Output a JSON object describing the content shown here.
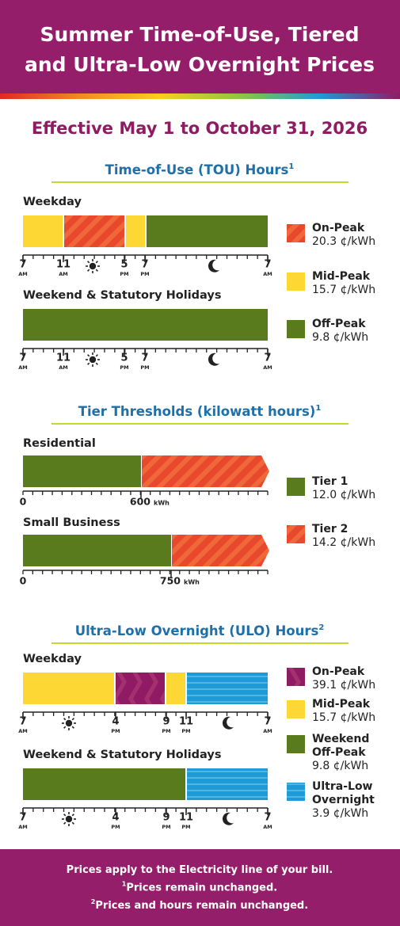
{
  "header": {
    "title_lines": [
      "Summer Time-of-Use, Tiered",
      "and Ultra-Low Overnight Prices"
    ]
  },
  "effective": "Effective May 1 to October 31, 2026",
  "tou": {
    "heading": "Time-of-Use (TOU) Hours",
    "heading_note": "1",
    "weekday": {
      "label": "Weekday",
      "ticks": [
        {
          "number": "7",
          "suffix": "AM"
        },
        {
          "number": "11",
          "suffix": "AM"
        },
        {
          "number": "5",
          "suffix": "PM"
        },
        {
          "number": "7",
          "suffix": "PM"
        },
        {
          "number": "7",
          "suffix": "AM"
        }
      ]
    },
    "weekend": {
      "label": "Weekend & Statutory Holidays",
      "ticks": [
        {
          "number": "7",
          "suffix": "AM"
        },
        {
          "number": "11",
          "suffix": "AM"
        },
        {
          "number": "5",
          "suffix": "PM"
        },
        {
          "number": "7",
          "suffix": "PM"
        },
        {
          "number": "7",
          "suffix": "AM"
        }
      ]
    },
    "legend": [
      {
        "name_lines": [
          "On-Peak"
        ],
        "price": "20.3 ¢/kWh"
      },
      {
        "name_lines": [
          "Mid-Peak"
        ],
        "price": "15.7 ¢/kWh"
      },
      {
        "name_lines": [
          "Off-Peak"
        ],
        "price": "9.8 ¢/kWh"
      }
    ]
  },
  "tiers": {
    "heading": "Tier Thresholds (kilowatt hours)",
    "heading_note": "1",
    "residential": {
      "label": "Residential",
      "start": "0",
      "threshold": "600",
      "unit": "kWh"
    },
    "small_business": {
      "label": "Small Business",
      "start": "0",
      "threshold": "750",
      "unit": "kWh"
    },
    "legend": [
      {
        "name_lines": [
          "Tier 1"
        ],
        "price": "12.0 ¢/kWh"
      },
      {
        "name_lines": [
          "Tier 2"
        ],
        "price": "14.2 ¢/kWh"
      }
    ]
  },
  "ulo": {
    "heading": "Ultra-Low Overnight (ULO) Hours",
    "heading_note": "2",
    "weekday": {
      "label": "Weekday",
      "ticks": [
        {
          "number": "7",
          "suffix": "AM"
        },
        {
          "number": "4",
          "suffix": "PM"
        },
        {
          "number": "9",
          "suffix": "PM"
        },
        {
          "number": "11",
          "suffix": "PM"
        },
        {
          "number": "7",
          "suffix": "AM"
        }
      ]
    },
    "weekend": {
      "label": "Weekend & Statutory Holidays",
      "ticks": [
        {
          "number": "7",
          "suffix": "AM"
        },
        {
          "number": "4",
          "suffix": "PM"
        },
        {
          "number": "9",
          "suffix": "PM"
        },
        {
          "number": "11",
          "suffix": "PM"
        },
        {
          "number": "7",
          "suffix": "AM"
        }
      ]
    },
    "legend": [
      {
        "name_lines": [
          "On-Peak"
        ],
        "price": "39.1 ¢/kWh"
      },
      {
        "name_lines": [
          "Mid-Peak"
        ],
        "price": "15.7 ¢/kWh"
      },
      {
        "name_lines": [
          "Weekend",
          "Off-Peak"
        ],
        "price": "9.8 ¢/kWh"
      },
      {
        "name_lines": [
          "Ultra-Low",
          "Overnight"
        ],
        "price": "3.9 ¢/kWh"
      }
    ]
  },
  "footer": {
    "lines": [
      {
        "text": "Prices apply to the Electricity line of your bill."
      },
      {
        "note": "1",
        "text": "Prices remain unchanged."
      },
      {
        "note": "2",
        "text": "Prices and hours remain unchanged."
      }
    ]
  }
}
